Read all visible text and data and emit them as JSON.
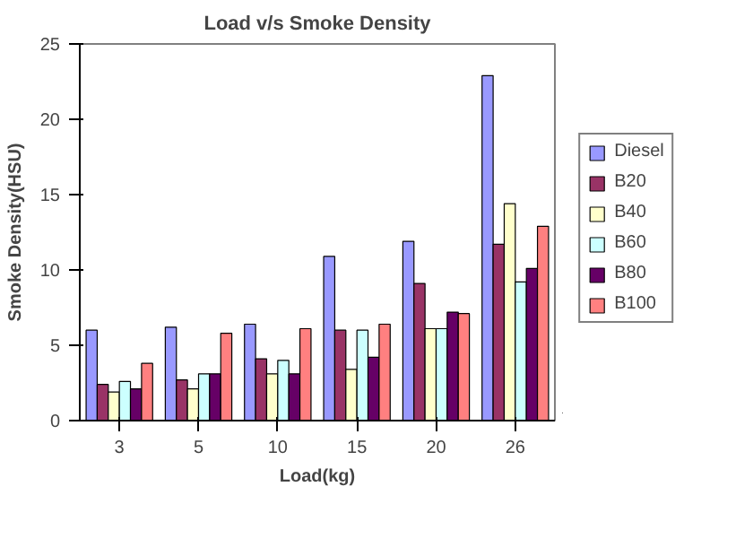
{
  "chart_data": {
    "type": "bar",
    "title": "Load v/s Smoke Density",
    "xlabel": "Load(kg)",
    "ylabel": "Smoke Density(HSU)",
    "categories": [
      "3",
      "5",
      "10",
      "15",
      "20",
      "26"
    ],
    "series": [
      {
        "name": "Diesel",
        "color": "#9999ff",
        "values": [
          6.0,
          6.2,
          6.4,
          10.9,
          11.9,
          22.9
        ]
      },
      {
        "name": "B20",
        "color": "#993366",
        "values": [
          2.4,
          2.7,
          4.1,
          6.0,
          9.1,
          11.7
        ]
      },
      {
        "name": "B40",
        "color": "#ffffcc",
        "values": [
          1.9,
          2.1,
          3.1,
          3.4,
          6.1,
          14.4
        ]
      },
      {
        "name": "B60",
        "color": "#ccffff",
        "values": [
          2.6,
          3.1,
          4.0,
          6.0,
          6.1,
          9.2
        ]
      },
      {
        "name": "B80",
        "color": "#660066",
        "values": [
          2.1,
          3.1,
          3.1,
          4.2,
          7.2,
          10.1
        ]
      },
      {
        "name": "B100",
        "color": "#ff8080",
        "values": [
          3.8,
          5.8,
          6.1,
          6.4,
          7.1,
          12.9
        ]
      }
    ],
    "ylim": [
      0,
      25
    ],
    "yticks": [
      0,
      5,
      10,
      15,
      20,
      25
    ],
    "grid": false,
    "legend": "right"
  }
}
